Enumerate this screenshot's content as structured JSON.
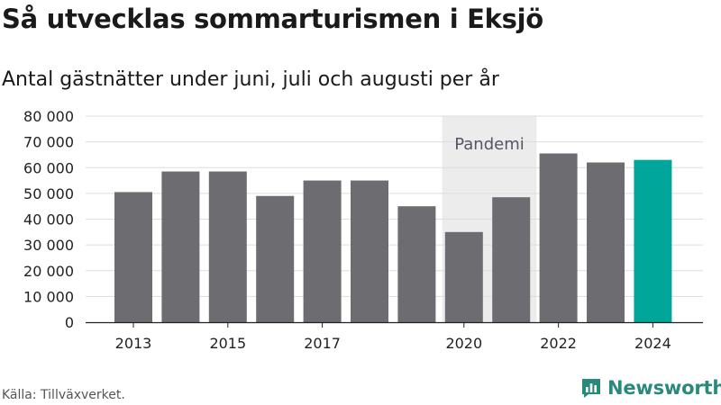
{
  "header": {
    "title": "Så utvecklas sommarturismen i Eksjö",
    "subtitle": "Antal gästnätter under juni, juli och augusti per år"
  },
  "footer": {
    "source": "Källa: Tillväxverket.",
    "brand": "Newsworthy"
  },
  "colors": {
    "bar": "#6d6c71",
    "highlight": "#00a69a",
    "pandemic_band": "#ececec",
    "brand": "#2a8a7a"
  },
  "chart_data": {
    "type": "bar",
    "categories": [
      2013,
      2014,
      2015,
      2016,
      2017,
      2018,
      2019,
      2020,
      2021,
      2022,
      2023,
      2024
    ],
    "values": [
      50500,
      58500,
      58500,
      49000,
      55000,
      55000,
      45000,
      35000,
      48500,
      65500,
      62000,
      63000
    ],
    "highlight_category": 2024,
    "x_tick_labels": [
      "2013",
      "2015",
      "2017",
      "2020",
      "2022",
      "2024"
    ],
    "y_tick_labels": [
      "0",
      "10 000",
      "20 000",
      "30 000",
      "40 000",
      "50 000",
      "60 000",
      "70 000",
      "80 000"
    ],
    "ylim": [
      0,
      80000
    ],
    "grid": true,
    "annotation": {
      "label": "Pandemi",
      "from_category": 2020,
      "to_category": 2021
    }
  }
}
